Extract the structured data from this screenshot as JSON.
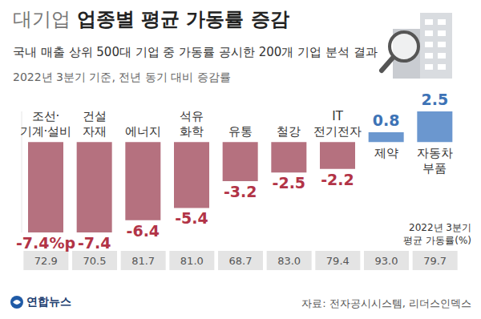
{
  "chart_data": {
    "type": "bar",
    "title": "대기업 업종별 평균 가동률 증감",
    "subtitles": [
      "국내 매출 상위 500대 기업 중 가동률 공시한 200개 기업 분석 결과",
      "2022년 3분기 기준, 전년 동기 대비 증감률"
    ],
    "categories": [
      "조선·\n기계·설비",
      "건설\n자재",
      "에너지",
      "석유\n화학",
      "유통",
      "철강",
      "IT\n전기전자",
      "제약",
      "자동차\n부품"
    ],
    "values": [
      -7.4,
      -7.4,
      -6.4,
      -5.4,
      -3.2,
      -2.5,
      -2.2,
      0.8,
      2.5
    ],
    "value_labels": [
      "-7.4%p",
      "-7.4",
      "-6.4",
      "-5.4",
      "-3.2",
      "-2.5",
      "-2.2",
      "0.8",
      "2.5"
    ],
    "colors": [
      "#b5717f",
      "#b5717f",
      "#b5717f",
      "#b5717f",
      "#b5717f",
      "#b5717f",
      "#b5717f",
      "#6b97cf",
      "#6b97cf"
    ],
    "ylim": [
      -7.4,
      2.5
    ],
    "tick_labels": false,
    "grid": false,
    "data_labels": true,
    "utilization_label": "2022년 3분기\n평균 가동률(%)",
    "utilization": [
      72.9,
      70.5,
      81.7,
      81.0,
      68.7,
      83.0,
      79.4,
      93.0,
      79.7
    ],
    "utilization_labels": [
      "72.9",
      "70.5",
      "81.7",
      "81.0",
      "68.7",
      "83.0",
      "79.4",
      "93.0",
      "79.7"
    ],
    "credit": "연합뉴스",
    "source": "자료: 전자공시시스템, 리더스인덱스"
  }
}
